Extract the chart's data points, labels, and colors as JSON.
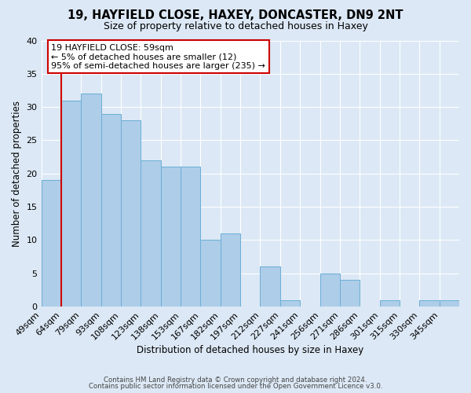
{
  "title_line1": "19, HAYFIELD CLOSE, HAXEY, DONCASTER, DN9 2NT",
  "title_line2": "Size of property relative to detached houses in Haxey",
  "xlabel": "Distribution of detached houses by size in Haxey",
  "ylabel": "Number of detached properties",
  "bin_labels": [
    "49sqm",
    "64sqm",
    "79sqm",
    "93sqm",
    "108sqm",
    "123sqm",
    "138sqm",
    "153sqm",
    "167sqm",
    "182sqm",
    "197sqm",
    "212sqm",
    "227sqm",
    "241sqm",
    "256sqm",
    "271sqm",
    "286sqm",
    "301sqm",
    "315sqm",
    "330sqm",
    "345sqm"
  ],
  "bar_values": [
    19,
    31,
    32,
    29,
    28,
    22,
    21,
    21,
    10,
    11,
    0,
    6,
    1,
    0,
    5,
    4,
    0,
    1,
    0,
    1,
    1
  ],
  "bar_color": "#aecde8",
  "bar_edge_color": "#6aaed6",
  "vline_color": "#cc0000",
  "annotation_text": "19 HAYFIELD CLOSE: 59sqm\n← 5% of detached houses are smaller (12)\n95% of semi-detached houses are larger (235) →",
  "annotation_box_color": "#ffffff",
  "annotation_box_edge": "#cc0000",
  "ylim": [
    0,
    40
  ],
  "yticks": [
    0,
    5,
    10,
    15,
    20,
    25,
    30,
    35,
    40
  ],
  "footer_line1": "Contains HM Land Registry data © Crown copyright and database right 2024.",
  "footer_line2": "Contains public sector information licensed under the Open Government Licence v3.0.",
  "background_color": "#dce8f5",
  "plot_bg_color": "#dce8f5",
  "grid_color": "#ffffff"
}
